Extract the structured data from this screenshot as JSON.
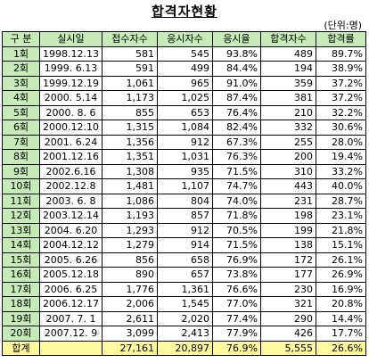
{
  "title": "합격자현황",
  "unit": "(단위:명)",
  "headers": [
    "구 분",
    "실시일",
    "접수자수",
    "응시자수",
    "응시율",
    "합격자수",
    "합격률"
  ],
  "rows": [
    [
      "1회",
      "1998.12.13",
      "581",
      "545",
      "93.8%",
      "489",
      "89.7%"
    ],
    [
      "2회",
      "1999. 6.13",
      "591",
      "499",
      "84.4%",
      "194",
      "38.9%"
    ],
    [
      "3회",
      "1999.12.19",
      "1,061",
      "965",
      "91.0%",
      "359",
      "37.2%"
    ],
    [
      "4회",
      "2000. 5.14",
      "1,173",
      "1,025",
      "87.4%",
      "381",
      "37.2%"
    ],
    [
      "5회",
      "2000. 8. 6",
      "855",
      "653",
      "76.4%",
      "210",
      "32.2%"
    ],
    [
      "6회",
      "2000.12.10",
      "1,315",
      "1,084",
      "82.4%",
      "332",
      "30.6%"
    ],
    [
      "7회",
      "2001. 6.24",
      "1,356",
      "912",
      "67.3%",
      "255",
      "28.0%"
    ],
    [
      "8회",
      "2001.12.16",
      "1,351",
      "1,031",
      "76.3%",
      "200",
      "19.4%"
    ],
    [
      "9회",
      "2002.6.16",
      "1,308",
      "935",
      "71.5%",
      "310",
      "33.2%"
    ],
    [
      "10회",
      "2002.12.8",
      "1,481",
      "1,107",
      "74.7%",
      "443",
      "40.0%"
    ],
    [
      "11회",
      "2003. 6. 8",
      "1,086",
      "804",
      "74.0%",
      "231",
      "28.7%"
    ],
    [
      "12회",
      "2003.12.14",
      "1,193",
      "857",
      "71.8%",
      "198",
      "23.1%"
    ],
    [
      "13회",
      "2004. 6.20",
      "1,293",
      "912",
      "70.5%",
      "199",
      "21.8%"
    ],
    [
      "14회",
      "2004.12.12",
      "1,279",
      "914",
      "71.5%",
      "138",
      "15.1%"
    ],
    [
      "15회",
      "2005. 6.26",
      "856",
      "658",
      "76.9%",
      "172",
      "26.1%"
    ],
    [
      "16회",
      "2005.12.18",
      "890",
      "657",
      "73.8%",
      "177",
      "26.9%"
    ],
    [
      "17회",
      "2006. 6.25",
      "1,776",
      "1,361",
      "76.6%",
      "230",
      "16.9%"
    ],
    [
      "18회",
      "2006.12.17",
      "2,006",
      "1,545",
      "77.0%",
      "321",
      "20.8%"
    ],
    [
      "19회",
      "2007. 7. 1",
      "2,611",
      "2,020",
      "77.4%",
      "290",
      "14.4%"
    ],
    [
      "20회",
      "2007.12. 9",
      "3,099",
      "2,413",
      "77.9%",
      "426",
      "17.7%"
    ]
  ],
  "total": [
    "합계",
    "",
    "27,161",
    "20,897",
    "76.9%",
    "5,555",
    "26.6%"
  ],
  "colors": {
    "header_bg": "#c6ebb8",
    "total_bg": "#fff89c"
  }
}
